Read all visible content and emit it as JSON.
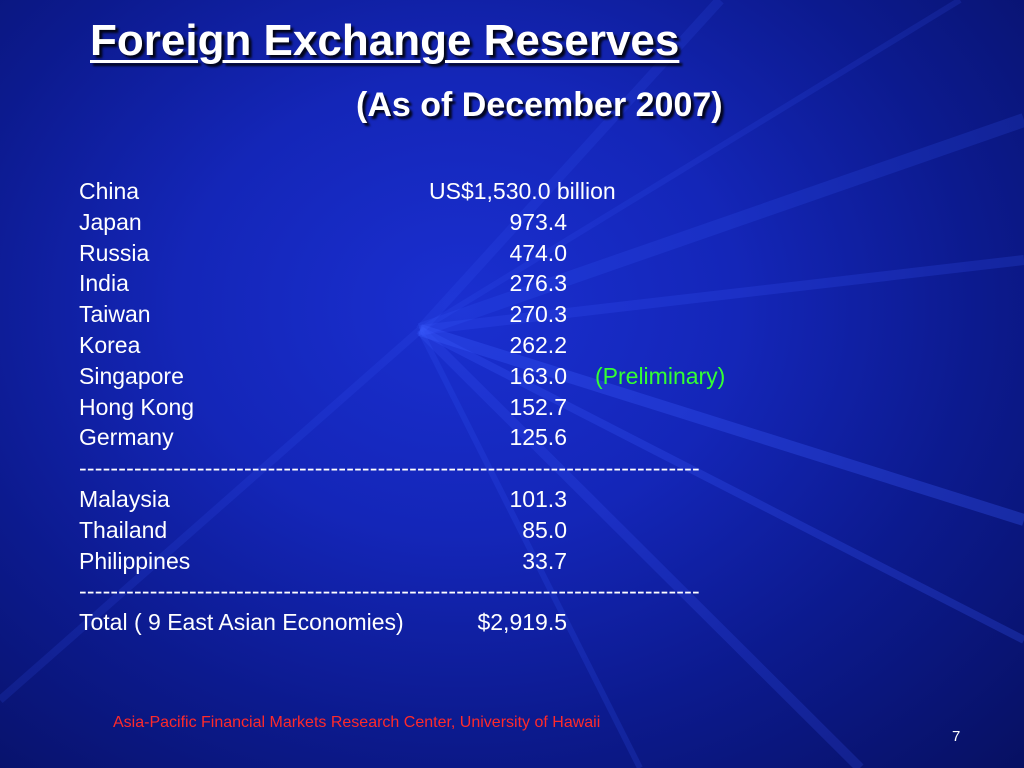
{
  "slide": {
    "title": "Foreign Exchange Reserves",
    "subtitle": "(As of December 2007)",
    "rows": [
      {
        "country": "China",
        "value": "US$1,530.0 billion"
      },
      {
        "country": "Japan",
        "value": "973.4"
      },
      {
        "country": "Russia",
        "value": "474.0"
      },
      {
        "country": "India",
        "value": "276.3"
      },
      {
        "country": "Taiwan",
        "value": "270.3"
      },
      {
        "country": "Korea",
        "value": "262.2"
      },
      {
        "country": "Singapore",
        "value": "163.0",
        "note": "(Preliminary)"
      },
      {
        "country": "Hong Kong",
        "value": "152.7"
      },
      {
        "country": "Germany",
        "value": "125.6"
      },
      {
        "country": "Malaysia",
        "value": "101.3"
      },
      {
        "country": "Thailand",
        "value": "85.0"
      },
      {
        "country": "Philippines",
        "value": "33.7"
      }
    ],
    "separator": "-------------------------------------------------------------------------------",
    "total": {
      "label": "Total ( 9 East Asian Economies)",
      "value": "$2,919.5"
    },
    "footer": "Asia-Pacific Financial Markets Research Center, University of Hawaii",
    "page_number": "7"
  },
  "colors": {
    "background": "#1426b8",
    "text": "#ffffff",
    "note": "#33ff33",
    "footer": "#ff2a2a"
  }
}
